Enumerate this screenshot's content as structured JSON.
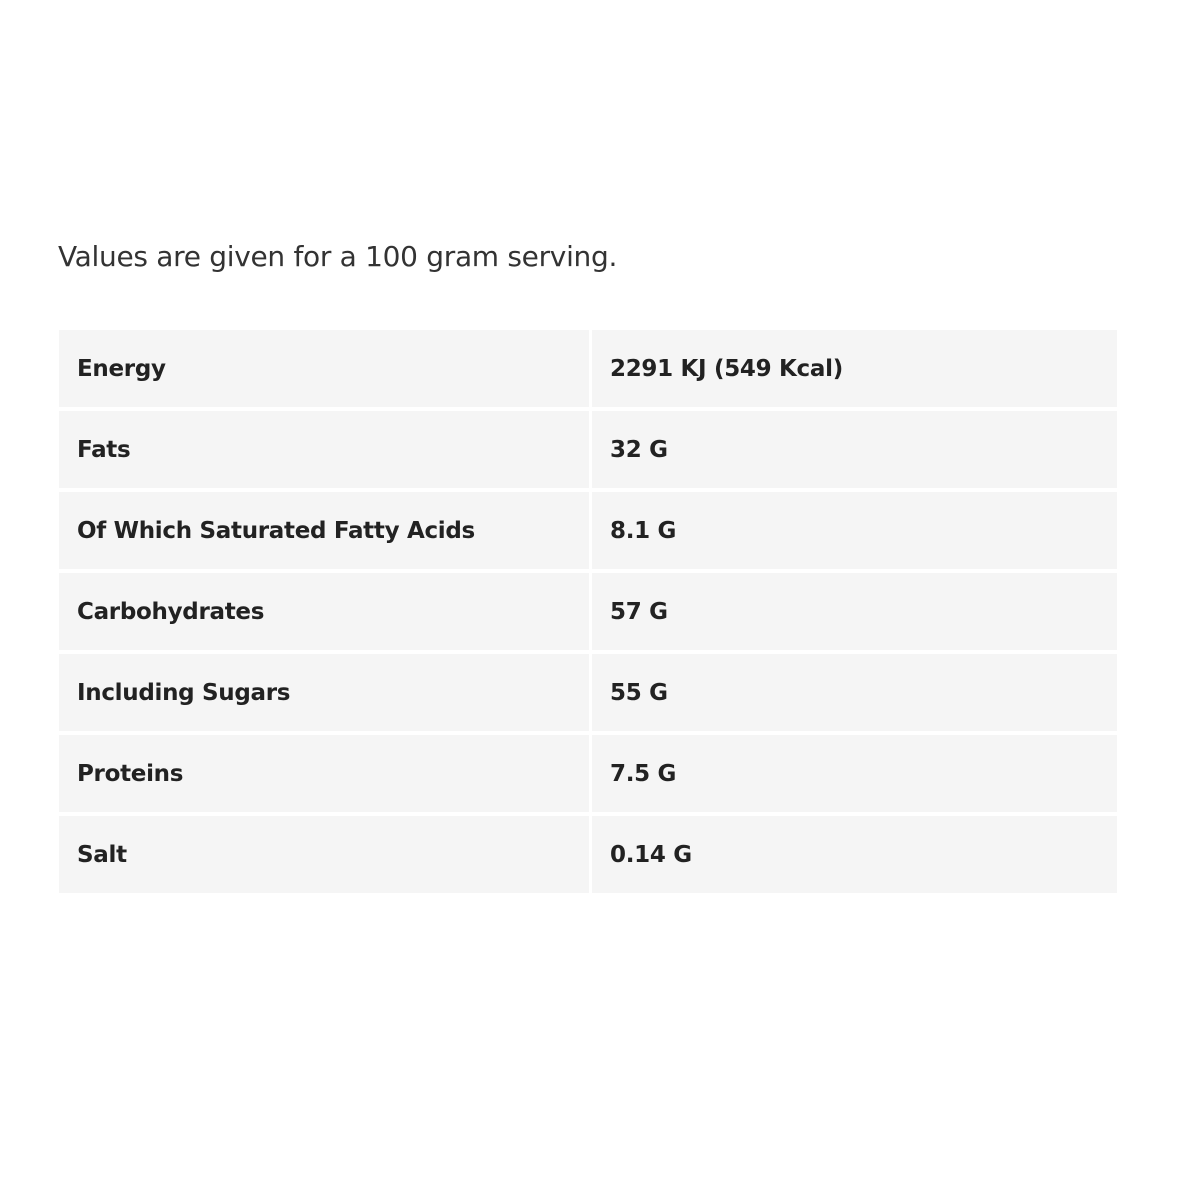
{
  "intro": "Values are given for a 100 gram serving.",
  "rows": [
    {
      "label": "Energy",
      "value": "2291 KJ (549 Kcal)"
    },
    {
      "label": "Fats",
      "value": "32 G"
    },
    {
      "label": "Of Which Saturated Fatty Acids",
      "value": "8.1 G"
    },
    {
      "label": "Carbohydrates",
      "value": "57 G"
    },
    {
      "label": "Including Sugars",
      "value": "55 G"
    },
    {
      "label": "Proteins",
      "value": "7.5 G"
    },
    {
      "label": "Salt",
      "value": "0.14 G"
    }
  ]
}
